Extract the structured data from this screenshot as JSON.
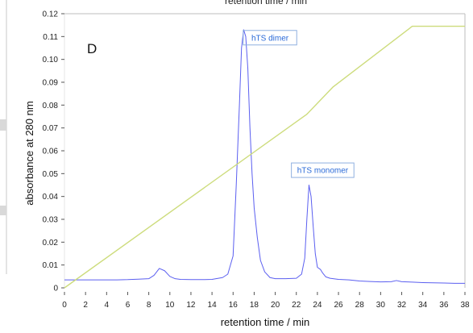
{
  "chart_data": {
    "type": "line",
    "panel_label": "D",
    "top_title": "retention time / min",
    "xlabel": "retention time / min",
    "ylabel": "absorbance at 280 nm",
    "xlim": [
      0,
      38
    ],
    "ylim": [
      0,
      0.12
    ],
    "x_ticks": [
      "0",
      "2",
      "4",
      "6",
      "8",
      "10",
      "12",
      "14",
      "16",
      "18",
      "20",
      "22",
      "24",
      "26",
      "28",
      "30",
      "32",
      "34",
      "36",
      "38"
    ],
    "y_ticks": [
      "0",
      "0.01",
      "0.02",
      "0.03",
      "0.04",
      "0.05",
      "0.06",
      "0.07",
      "0.08",
      "0.09",
      "0.10",
      "0.11",
      "0.12"
    ],
    "grid": false,
    "colors": {
      "absorbance": "#5b5ff0",
      "gradient": "#cddc7c",
      "annotation": "#2a6ad8"
    },
    "series": [
      {
        "x": [
          0,
          1,
          2,
          3,
          4,
          5,
          6,
          7,
          8,
          8.5,
          9,
          9.5,
          10,
          10.5,
          11,
          12,
          13,
          14,
          15,
          15.5,
          16,
          16.3,
          16.6,
          16.8,
          17,
          17.2,
          17.4,
          17.6,
          17.8,
          18,
          18.3,
          18.6,
          19,
          19.5,
          20,
          21,
          22,
          22.5,
          22.8,
          23,
          23.2,
          23.4,
          23.6,
          23.8,
          24,
          24.3,
          24.5,
          24.8,
          25.2,
          26,
          27,
          28,
          29,
          30,
          31,
          31.5,
          32,
          33,
          34,
          35,
          36,
          37,
          38
        ],
        "y": [
          0.0035,
          0.0035,
          0.0035,
          0.0035,
          0.0035,
          0.0035,
          0.0036,
          0.0038,
          0.004,
          0.0055,
          0.0085,
          0.0075,
          0.005,
          0.004,
          0.0037,
          0.0036,
          0.0036,
          0.0037,
          0.0045,
          0.006,
          0.014,
          0.045,
          0.08,
          0.105,
          0.113,
          0.11,
          0.096,
          0.07,
          0.05,
          0.035,
          0.022,
          0.012,
          0.007,
          0.0045,
          0.004,
          0.004,
          0.0042,
          0.006,
          0.013,
          0.03,
          0.045,
          0.04,
          0.027,
          0.015,
          0.009,
          0.008,
          0.0065,
          0.0048,
          0.0042,
          0.0037,
          0.0035,
          0.003,
          0.0028,
          0.0026,
          0.0027,
          0.0032,
          0.0027,
          0.0025,
          0.0023,
          0.0022,
          0.0021,
          0.002,
          0.002
        ]
      },
      {
        "x": [
          0,
          23,
          25.5,
          33,
          38
        ],
        "y": [
          0,
          0.076,
          0.088,
          0.1145,
          0.1145
        ]
      }
    ],
    "annotations": [
      {
        "text": "hTS dimer",
        "x": 19.5,
        "y": 0.1095
      },
      {
        "text": "hTS monomer",
        "x": 24.5,
        "y": 0.0515
      }
    ]
  }
}
